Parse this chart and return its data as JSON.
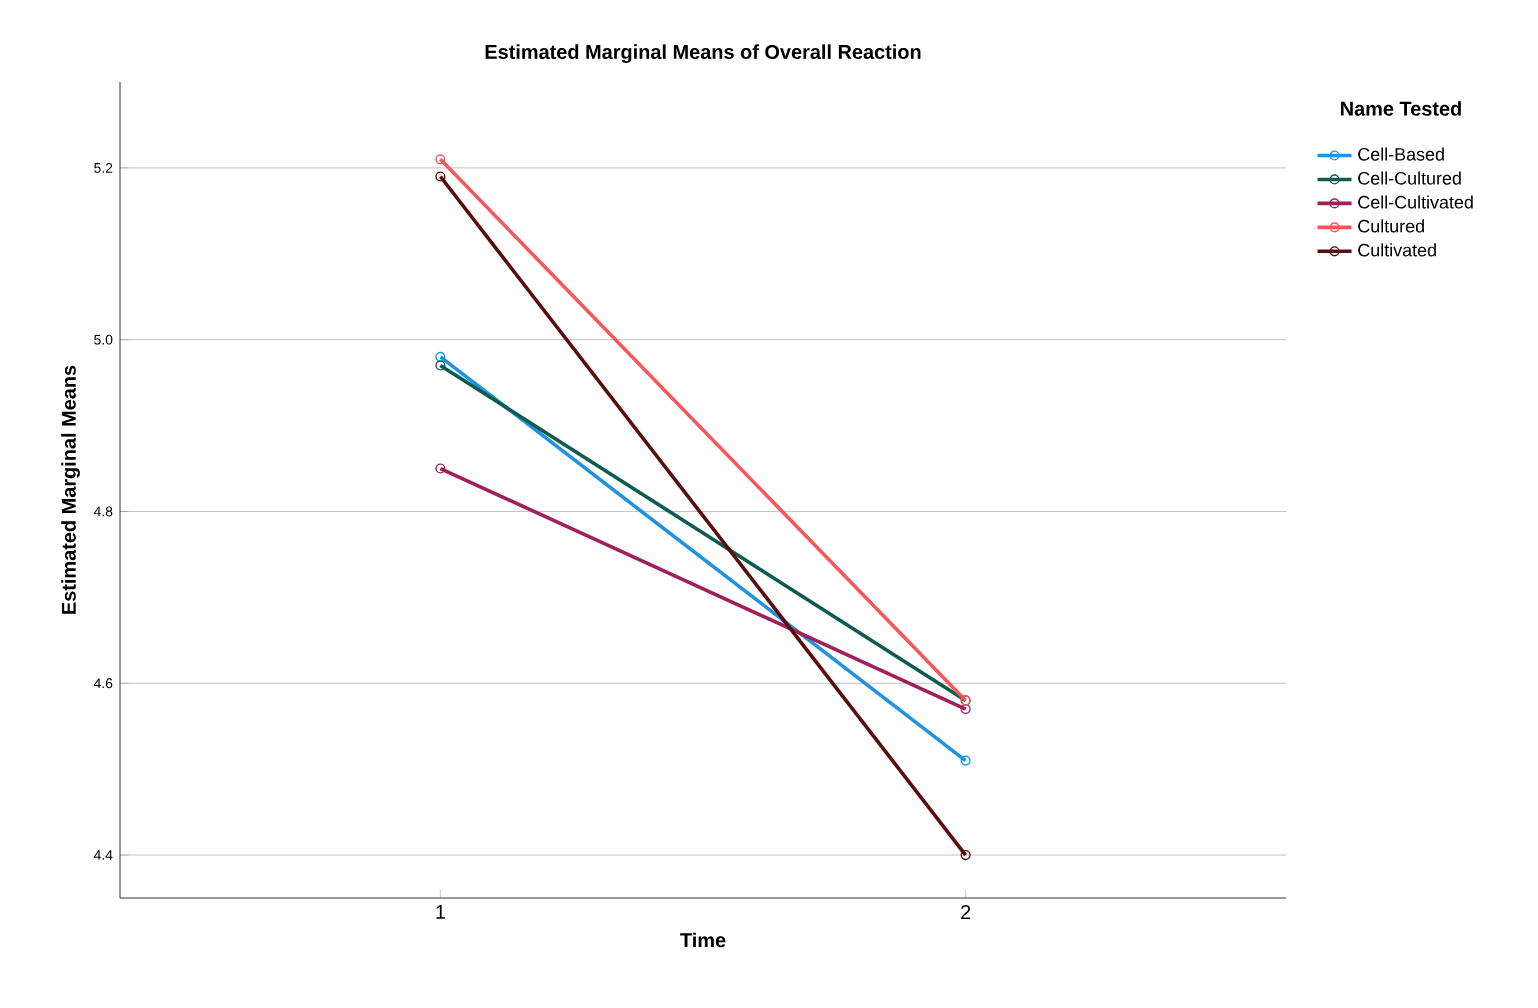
{
  "chart_data": {
    "type": "line",
    "title": "Estimated Marginal Means of Overall Reaction",
    "xlabel": "Time",
    "ylabel": "Estimated Marginal Means",
    "legend_title": "Name Tested",
    "categories": [
      "1",
      "2"
    ],
    "series": [
      {
        "name": "Cell-Based",
        "color": "#1f93e0",
        "values": [
          4.98,
          4.51
        ]
      },
      {
        "name": "Cell-Cultured",
        "color": "#0e5b52",
        "values": [
          4.97,
          4.58
        ]
      },
      {
        "name": "Cell-Cultivated",
        "color": "#a0205a",
        "values": [
          4.85,
          4.57
        ]
      },
      {
        "name": "Cultured",
        "color": "#f7575a",
        "values": [
          5.21,
          4.58
        ]
      },
      {
        "name": "Cultivated",
        "color": "#5a0d0d",
        "values": [
          5.19,
          4.4
        ]
      }
    ],
    "ylim": [
      4.35,
      5.3
    ],
    "yticks": [
      4.4,
      4.6,
      4.8,
      {
        "value": 5.0,
        "label": "5.0"
      },
      5.2
    ],
    "grid": "y",
    "legend": "right",
    "marker": "circle",
    "line_style": "solid"
  }
}
